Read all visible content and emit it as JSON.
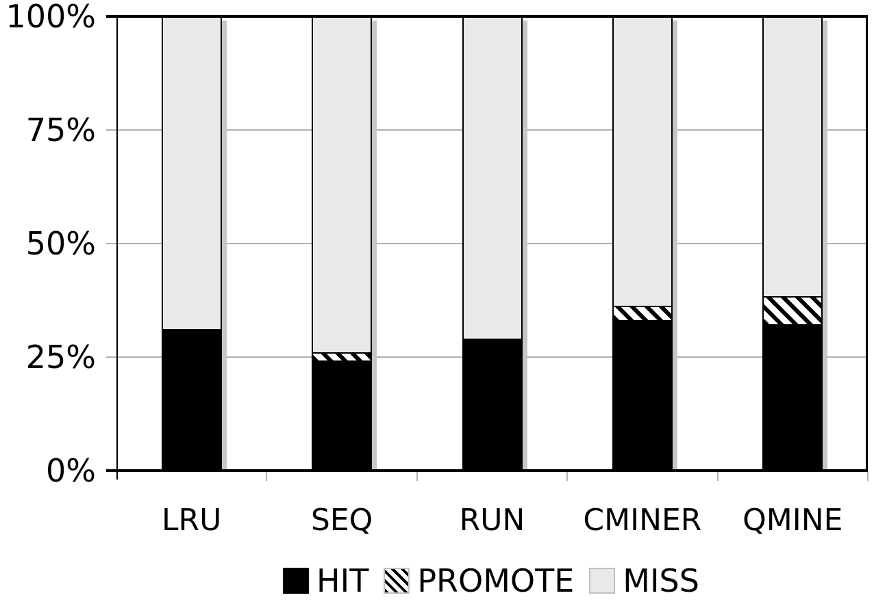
{
  "chart_data": {
    "type": "bar",
    "stacked": true,
    "title": "",
    "xlabel": "",
    "ylabel": "",
    "categories": [
      "LRU",
      "SEQ",
      "RUN",
      "CMINER",
      "QMINE"
    ],
    "series": [
      {
        "name": "HIT",
        "style": "solid-black",
        "values": [
          31,
          24,
          29,
          33,
          32
        ]
      },
      {
        "name": "PROMOTE",
        "style": "diagonal-hatch",
        "values": [
          0,
          1.5,
          0,
          2.8,
          5.9
        ]
      },
      {
        "name": "MISS",
        "style": "light-gray",
        "values": [
          69,
          74.5,
          71,
          64.2,
          62.1
        ]
      }
    ],
    "ylim": [
      0,
      100
    ],
    "yticks": [
      {
        "value": 0,
        "label": "0%"
      },
      {
        "value": 25,
        "label": "25%"
      },
      {
        "value": 50,
        "label": "50%"
      },
      {
        "value": 75,
        "label": "75%"
      },
      {
        "value": 100,
        "label": "100%"
      }
    ],
    "grid": true,
    "legend": {
      "position": "bottom",
      "items": [
        "HIT",
        "PROMOTE",
        "MISS"
      ]
    }
  },
  "colors": {
    "hit_fill": "#000000",
    "miss_fill": "#e9e9e9",
    "hatch_stripe": "#000000",
    "hatch_background": "#ffffff",
    "gridline": "#b0b0b0",
    "axis": "#000000",
    "bar_shadow": "#c6c6c6",
    "background": "#ffffff",
    "text": "#000000"
  }
}
